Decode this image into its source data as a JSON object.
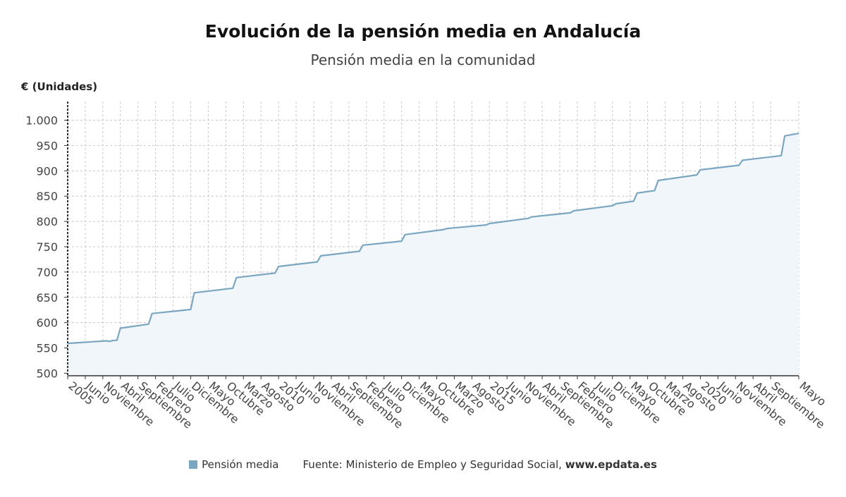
{
  "chart_data": {
    "type": "area",
    "title": "Evolución de la pensión media en Andalucía",
    "subtitle": "Pensión media en la comunidad",
    "ylabel": "€ (Unidades)",
    "ylim": [
      495,
      1037
    ],
    "yticks": [
      500,
      550,
      600,
      650,
      700,
      750,
      800,
      850,
      900,
      950,
      1000
    ],
    "ytick_labels": [
      "500",
      "550",
      "600",
      "650",
      "700",
      "750",
      "800",
      "850",
      "900",
      "950",
      "1.000"
    ],
    "grid": true,
    "legend_position": "bottom",
    "xlim": [
      "2005-01",
      "2022-05"
    ],
    "xtick_labels": [
      {
        "label": "2005",
        "date": "2005-01"
      },
      {
        "label": "Junio",
        "date": "2005-06"
      },
      {
        "label": "Noviembre",
        "date": "2005-11"
      },
      {
        "label": "Abril",
        "date": "2006-04"
      },
      {
        "label": "Septiembre",
        "date": "2006-09"
      },
      {
        "label": "Febrero",
        "date": "2007-02"
      },
      {
        "label": "Julio",
        "date": "2007-07"
      },
      {
        "label": "Diciembre",
        "date": "2007-12"
      },
      {
        "label": "Mayo",
        "date": "2008-05"
      },
      {
        "label": "Octubre",
        "date": "2008-10"
      },
      {
        "label": "Marzo",
        "date": "2009-03"
      },
      {
        "label": "Agosto",
        "date": "2009-08"
      },
      {
        "label": "2010",
        "date": "2010-01"
      },
      {
        "label": "Junio",
        "date": "2010-06"
      },
      {
        "label": "Noviembre",
        "date": "2010-11"
      },
      {
        "label": "Abril",
        "date": "2011-04"
      },
      {
        "label": "Septiembre",
        "date": "2011-09"
      },
      {
        "label": "Febrero",
        "date": "2012-02"
      },
      {
        "label": "Julio",
        "date": "2012-07"
      },
      {
        "label": "Diciembre",
        "date": "2012-12"
      },
      {
        "label": "Mayo",
        "date": "2013-05"
      },
      {
        "label": "Octubre",
        "date": "2013-10"
      },
      {
        "label": "Marzo",
        "date": "2014-03"
      },
      {
        "label": "Agosto",
        "date": "2014-08"
      },
      {
        "label": "2015",
        "date": "2015-01"
      },
      {
        "label": "Junio",
        "date": "2015-06"
      },
      {
        "label": "Noviembre",
        "date": "2015-11"
      },
      {
        "label": "Abril",
        "date": "2016-04"
      },
      {
        "label": "Septiembre",
        "date": "2016-09"
      },
      {
        "label": "Febrero",
        "date": "2017-02"
      },
      {
        "label": "Julio",
        "date": "2017-07"
      },
      {
        "label": "Diciembre",
        "date": "2017-12"
      },
      {
        "label": "Mayo",
        "date": "2018-05"
      },
      {
        "label": "Octubre",
        "date": "2018-10"
      },
      {
        "label": "Marzo",
        "date": "2019-03"
      },
      {
        "label": "Agosto",
        "date": "2019-08"
      },
      {
        "label": "2020",
        "date": "2020-01"
      },
      {
        "label": "Junio",
        "date": "2020-06"
      },
      {
        "label": "Noviembre",
        "date": "2020-11"
      },
      {
        "label": "Abril",
        "date": "2021-04"
      },
      {
        "label": "Septiembre",
        "date": "2021-09"
      },
      {
        "label": "Mayo",
        "date": "2022-05"
      }
    ],
    "series": [
      {
        "name": "Pensión media",
        "color": "#7aa6c2",
        "fill": "#f1f6fa",
        "points": [
          [
            "2005-01",
            559
          ],
          [
            "2005-12",
            564
          ],
          [
            "2006-01",
            563
          ],
          [
            "2006-02",
            565
          ],
          [
            "2006-03",
            565
          ],
          [
            "2006-04",
            589
          ],
          [
            "2006-12",
            597
          ],
          [
            "2007-01",
            618
          ],
          [
            "2007-12",
            626
          ],
          [
            "2008-01",
            659
          ],
          [
            "2008-12",
            668
          ],
          [
            "2009-01",
            689
          ],
          [
            "2009-12",
            698
          ],
          [
            "2010-01",
            711
          ],
          [
            "2010-12",
            720
          ],
          [
            "2011-01",
            732
          ],
          [
            "2011-12",
            741
          ],
          [
            "2012-01",
            753
          ],
          [
            "2012-12",
            761
          ],
          [
            "2013-01",
            774
          ],
          [
            "2013-12",
            784
          ],
          [
            "2014-01",
            786
          ],
          [
            "2014-12",
            793
          ],
          [
            "2015-01",
            796
          ],
          [
            "2015-12",
            806
          ],
          [
            "2016-01",
            809
          ],
          [
            "2016-12",
            817
          ],
          [
            "2017-01",
            821
          ],
          [
            "2017-12",
            831
          ],
          [
            "2018-01",
            835
          ],
          [
            "2018-06",
            840
          ],
          [
            "2018-07",
            856
          ],
          [
            "2018-12",
            861
          ],
          [
            "2019-01",
            881
          ],
          [
            "2019-12",
            892
          ],
          [
            "2020-01",
            902
          ],
          [
            "2020-12",
            911
          ],
          [
            "2021-01",
            921
          ],
          [
            "2021-12",
            930
          ],
          [
            "2022-01",
            969
          ],
          [
            "2022-05",
            974
          ]
        ]
      }
    ]
  },
  "legend": {
    "series_label": "Pensión media",
    "swatch_color": "#7aa6c2",
    "source_prefix": "Fuente: Ministerio de Empleo y Seguridad Social, ",
    "source_site": "www.epdata.es"
  }
}
